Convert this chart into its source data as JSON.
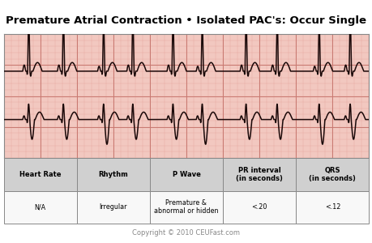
{
  "title": "Premature Atrial Contraction • Isolated PAC's: Occur Single",
  "title_fontsize": 9.5,
  "bg_color": "#f2c8c0",
  "grid_major_color": "#c87870",
  "grid_minor_color": "#e8a8a0",
  "ecg_color": "#1a0808",
  "ecg_linewidth": 1.1,
  "table_headers": [
    "Heart Rate",
    "Rhythm",
    "P Wave",
    "PR interval\n(in seconds)",
    "QRS\n(in seconds)"
  ],
  "table_values": [
    "N/A",
    "Irregular",
    "Premature &\nabnormal or hidden",
    "<.20",
    "<.12"
  ],
  "table_bg_header": "#d0d0d0",
  "table_bg_value": "#f8f8f8",
  "table_border": "#888888",
  "copyright": "Copyright © 2010 CEUFast.com",
  "copyright_fontsize": 6,
  "copyright_color": "#888888"
}
